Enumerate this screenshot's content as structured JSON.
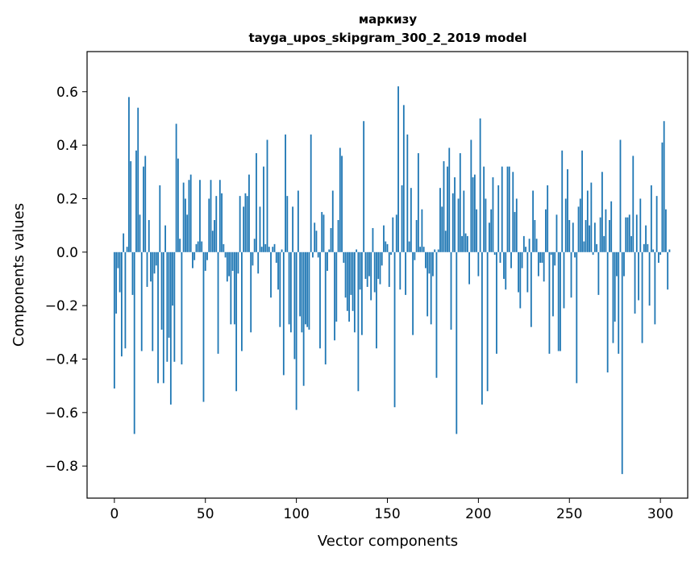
{
  "chart_data": {
    "type": "bar",
    "title": "маркизу",
    "subtitle": "tayga_upos_skipgram_300_2_2019 model",
    "xlabel": "Vector components",
    "ylabel": "Components values",
    "xlim": [
      -15,
      315
    ],
    "ylim": [
      -0.92,
      0.75
    ],
    "xticks": [
      0,
      50,
      100,
      150,
      200,
      250,
      300
    ],
    "xtick_labels": [
      "0",
      "50",
      "100",
      "150",
      "200",
      "250",
      "300"
    ],
    "yticks": [
      -0.8,
      -0.6,
      -0.4,
      -0.2,
      0.0,
      0.2,
      0.4,
      0.6
    ],
    "ytick_labels": [
      "−0.8",
      "−0.6",
      "−0.4",
      "−0.2",
      "0.0",
      "0.2",
      "0.4",
      "0.6"
    ],
    "bar_color": "#1f77b4",
    "grid": false,
    "values": [
      -0.51,
      -0.23,
      -0.06,
      -0.15,
      -0.39,
      0.07,
      -0.36,
      0.02,
      0.58,
      0.34,
      -0.16,
      -0.68,
      0.38,
      0.54,
      0.14,
      -0.37,
      0.32,
      0.36,
      -0.13,
      0.12,
      -0.11,
      -0.37,
      -0.08,
      -0.05,
      -0.49,
      0.25,
      -0.29,
      -0.49,
      0.1,
      -0.41,
      -0.32,
      -0.57,
      -0.2,
      -0.41,
      0.48,
      0.35,
      0.05,
      -0.42,
      0.26,
      0.2,
      0.14,
      0.27,
      0.29,
      -0.06,
      -0.03,
      0.03,
      0.04,
      0.27,
      0.04,
      -0.56,
      -0.07,
      -0.03,
      0.2,
      0.27,
      0.08,
      0.12,
      0.21,
      -0.38,
      0.27,
      0.22,
      0.03,
      -0.02,
      -0.11,
      -0.09,
      -0.27,
      -0.07,
      -0.27,
      -0.52,
      -0.08,
      0.21,
      -0.37,
      0.17,
      0.22,
      0.21,
      0.29,
      -0.3,
      -0.05,
      0.05,
      0.37,
      -0.08,
      0.17,
      0.02,
      0.32,
      0.03,
      0.42,
      0.02,
      -0.17,
      0.02,
      0.03,
      -0.04,
      -0.14,
      -0.28,
      0.01,
      -0.46,
      0.44,
      0.21,
      -0.27,
      -0.3,
      0.17,
      -0.4,
      -0.59,
      0.23,
      -0.24,
      -0.3,
      -0.5,
      -0.27,
      -0.28,
      -0.29,
      0.44,
      -0.02,
      0.11,
      0.08,
      -0.02,
      -0.36,
      0.15,
      0.14,
      -0.42,
      -0.07,
      0.01,
      0.09,
      0.23,
      -0.33,
      -0.26,
      0.12,
      0.39,
      0.36,
      -0.04,
      -0.17,
      -0.22,
      -0.26,
      -0.16,
      -0.22,
      -0.3,
      0.01,
      -0.52,
      -0.14,
      -0.31,
      0.49,
      -0.1,
      -0.13,
      -0.09,
      -0.18,
      0.09,
      -0.15,
      -0.36,
      -0.1,
      -0.12,
      -0.05,
      0.1,
      0.04,
      0.03,
      -0.13,
      -0.01,
      0.13,
      -0.58,
      0.14,
      0.62,
      -0.14,
      0.25,
      0.55,
      -0.16,
      0.44,
      0.04,
      0.24,
      -0.31,
      -0.03,
      0.12,
      0.37,
      0.02,
      0.16,
      0.02,
      -0.06,
      -0.24,
      -0.08,
      -0.27,
      -0.09,
      0.01,
      -0.47,
      0.01,
      0.24,
      0.17,
      0.34,
      0.08,
      0.32,
      0.39,
      -0.29,
      0.22,
      0.28,
      -0.68,
      0.2,
      0.37,
      0.06,
      0.23,
      0.07,
      0.06,
      -0.12,
      0.42,
      0.28,
      0.29,
      0.16,
      -0.09,
      0.5,
      -0.57,
      0.32,
      0.2,
      -0.52,
      0.11,
      0.16,
      0.28,
      -0.01,
      -0.38,
      0.25,
      -0.04,
      0.32,
      -0.1,
      -0.14,
      0.32,
      0.32,
      -0.06,
      0.3,
      0.15,
      0.2,
      -0.15,
      -0.21,
      -0.06,
      0.06,
      0.02,
      -0.15,
      0.05,
      -0.28,
      0.23,
      0.12,
      0.05,
      -0.09,
      -0.04,
      -0.04,
      -0.11,
      0.16,
      0.25,
      -0.38,
      -0.01,
      -0.24,
      -0.05,
      0.14,
      -0.37,
      -0.37,
      0.38,
      -0.21,
      0.2,
      0.31,
      0.12,
      -0.17,
      0.11,
      -0.02,
      -0.49,
      0.17,
      0.2,
      0.38,
      0.04,
      0.12,
      0.23,
      0.1,
      0.26,
      -0.01,
      0.11,
      0.03,
      -0.16,
      0.13,
      0.3,
      0.06,
      0.16,
      -0.45,
      0.12,
      0.19,
      -0.34,
      -0.26,
      -0.09,
      -0.38,
      0.42,
      -0.83,
      -0.09,
      0.13,
      0.13,
      0.14,
      0.06,
      0.36,
      -0.23,
      0.14,
      -0.18,
      0.2,
      -0.34,
      0.03,
      0.1,
      0.03,
      -0.2,
      0.25,
      0.01,
      -0.27,
      0.21,
      -0.04,
      -0.01,
      0.41,
      0.49,
      0.16,
      -0.14,
      0.01
    ]
  }
}
